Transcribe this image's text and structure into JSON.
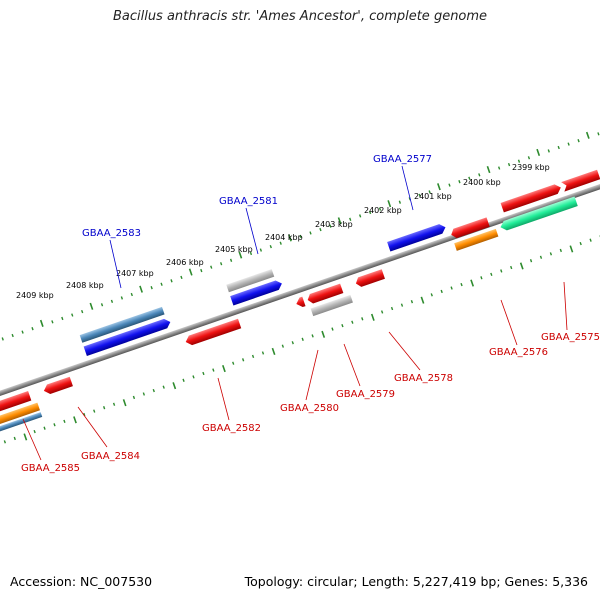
{
  "title": "Bacillus anthracis str. 'Ames Ancestor', complete genome",
  "footer": {
    "accession": "Accession: NC_007530",
    "summary": "Topology: circular; Length: 5,227,419 bp; Genes: 5,336"
  },
  "colors": {
    "backbone": "#8c8c8c",
    "tick": "#2e8b2e",
    "label_blue": "#0000cc",
    "label_red": "#cc0000",
    "feature_red": "#ee1111",
    "feature_blue": "#1111ee",
    "feature_steel": "#4a86b8",
    "feature_grey": "#b4b4b4",
    "feature_orange": "#ff8c00",
    "feature_green": "#22ee99"
  },
  "scale": {
    "unit_label": "kbp",
    "labels": [
      "2399 kbp",
      "2400 kbp",
      "2401 kbp",
      "2402 kbp",
      "2403 kbp",
      "2404 kbp",
      "2405 kbp",
      "2406 kbp",
      "2407 kbp",
      "2408 kbp",
      "2409 kbp"
    ]
  },
  "genes": [
    {
      "name": "GBAA_2577",
      "strand": "forward"
    },
    {
      "name": "GBAA_2581",
      "strand": "forward"
    },
    {
      "name": "GBAA_2583",
      "strand": "forward"
    },
    {
      "name": "GBAA_2575",
      "strand": "reverse"
    },
    {
      "name": "GBAA_2576",
      "strand": "reverse"
    },
    {
      "name": "GBAA_2578",
      "strand": "reverse"
    },
    {
      "name": "GBAA_2579",
      "strand": "reverse"
    },
    {
      "name": "GBAA_2580",
      "strand": "reverse"
    },
    {
      "name": "GBAA_2582",
      "strand": "reverse"
    },
    {
      "name": "GBAA_2584",
      "strand": "reverse"
    },
    {
      "name": "GBAA_2585",
      "strand": "reverse"
    }
  ]
}
